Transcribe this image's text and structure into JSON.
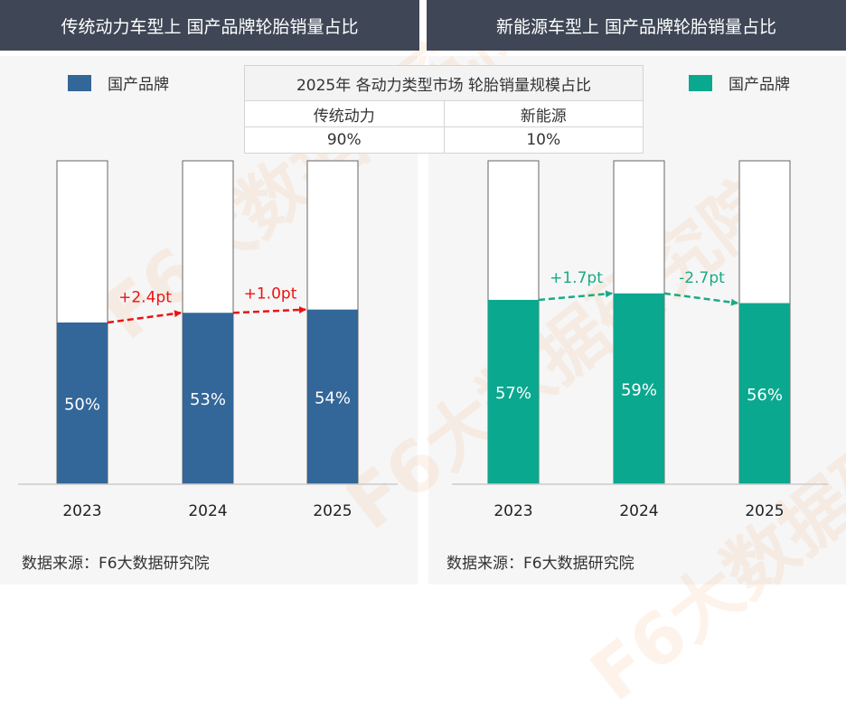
{
  "headers": {
    "left": "传统动力车型上 国产品牌轮胎销量占比",
    "right": "新能源车型上 国产品牌轮胎销量占比"
  },
  "summary_table": {
    "title": "2025年 各动力类型市场 轮胎销量规模占比",
    "columns": [
      "传统动力",
      "新能源"
    ],
    "values": [
      "90%",
      "10%"
    ]
  },
  "source": "数据来源：F6大数据研究院",
  "watermark": "F6大数据研究院",
  "chart_data": [
    {
      "type": "bar",
      "stacked_to_100": true,
      "categories": [
        "2023",
        "2024",
        "2025"
      ],
      "series": [
        {
          "name": "国产品牌",
          "values": [
            50,
            53,
            54
          ],
          "labels": [
            "50%",
            "53%",
            "54%"
          ],
          "color": "#336699"
        }
      ],
      "ylim": [
        0,
        100
      ],
      "changes": [
        "+2.4pt",
        "+1.0pt"
      ],
      "change_color": "#ee1111"
    },
    {
      "type": "bar",
      "stacked_to_100": true,
      "categories": [
        "2023",
        "2024",
        "2025"
      ],
      "series": [
        {
          "name": "国产品牌",
          "values": [
            57,
            59,
            56
          ],
          "labels": [
            "57%",
            "59%",
            "56%"
          ],
          "color": "#0aa88f"
        }
      ],
      "ylim": [
        0,
        100
      ],
      "changes": [
        "+1.7pt",
        "-2.7pt"
      ],
      "change_color": "#1aaa85"
    }
  ]
}
